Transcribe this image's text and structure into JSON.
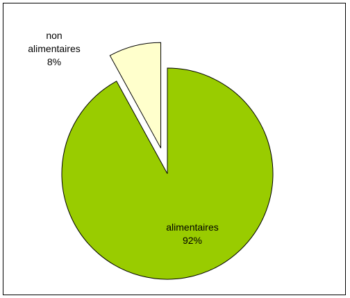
{
  "chart_data": {
    "type": "pie",
    "categories": [
      "alimentaires",
      "non alimentaires"
    ],
    "values": [
      92,
      8
    ],
    "value_labels": [
      "92%",
      "8%"
    ],
    "colors": [
      "#99cc00",
      "#ffffcc"
    ]
  }
}
